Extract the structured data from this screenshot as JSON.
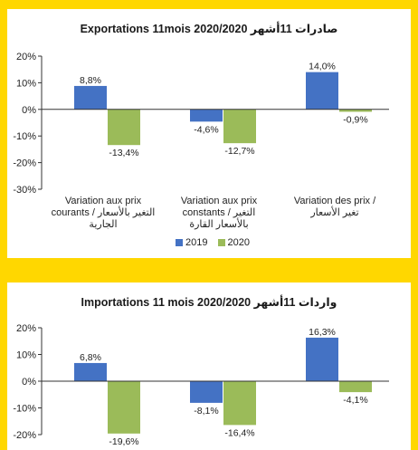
{
  "colors": {
    "s2019": "#4472c4",
    "s2020": "#9bbb59"
  },
  "chart_data": [
    {
      "type": "bar",
      "title": "Exportations 11mois 2020/2020 صادرات 11أشهر",
      "ylim": [
        -30,
        20
      ],
      "yticks": [
        "20%",
        "10%",
        "0%",
        "-10%",
        "-20%",
        "-30%"
      ],
      "categories": [
        [
          "Variation aux prix",
          "courants / التغير بالأسعار",
          "الجارية"
        ],
        [
          "Variation aux prix",
          "constants / التغير",
          "بالأسعار القارة"
        ],
        [
          "Variation des prix /",
          "تغير الأسعار"
        ]
      ],
      "series": [
        {
          "name": "2019",
          "values": [
            8.8,
            -4.6,
            14.0
          ],
          "labels": [
            "8,8%",
            "-4,6%",
            "14,0%"
          ]
        },
        {
          "name": "2020",
          "values": [
            -13.4,
            -12.7,
            -0.9
          ],
          "labels": [
            "-13,4%",
            "-12,7%",
            "-0,9%"
          ]
        }
      ],
      "legend": "bottom"
    },
    {
      "type": "bar",
      "title": "Importations 11 mois 2020/2020 واردات 11أشهر",
      "ylim": [
        -20,
        20
      ],
      "yticks": [
        "20%",
        "10%",
        "0%",
        "-10%",
        "-20%"
      ],
      "series": [
        {
          "name": "2019",
          "values": [
            6.8,
            -8.1,
            16.3
          ],
          "labels": [
            "6,8%",
            "-8,1%",
            "16,3%"
          ]
        },
        {
          "name": "2020",
          "values": [
            -19.6,
            -16.4,
            -4.1
          ],
          "labels": [
            "-19,6%",
            "-16,4%",
            "-4,1%"
          ]
        }
      ]
    }
  ]
}
